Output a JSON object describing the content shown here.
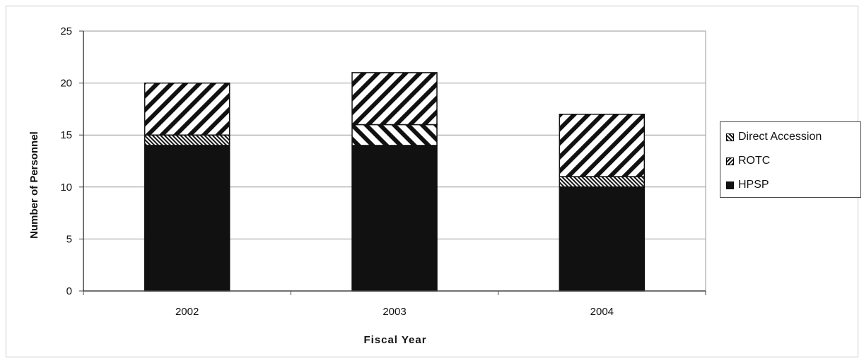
{
  "chart_data": {
    "type": "bar",
    "stacked": true,
    "categories": [
      "2002",
      "2003",
      "2004"
    ],
    "series": [
      {
        "name": "HPSP",
        "values": [
          14,
          14,
          10
        ],
        "pattern": "solid",
        "color": "#111111"
      },
      {
        "name": "ROTC",
        "values": [
          1,
          2,
          1
        ],
        "pattern": "hatch-forward",
        "color": "#111111"
      },
      {
        "name": "Direct Accession",
        "values": [
          5,
          5,
          6
        ],
        "pattern": "hatch-back",
        "color": "#111111"
      }
    ],
    "xlabel": "Fiscal Year",
    "ylabel": "Number of Personnel",
    "ylim": [
      0,
      25
    ],
    "yticks": [
      "0",
      "5",
      "10",
      "15",
      "20",
      "25"
    ],
    "grid": true,
    "legend_position": "right"
  },
  "legend": {
    "items": [
      {
        "label": "Direct Accession",
        "pattern": "hatch-back"
      },
      {
        "label": "ROTC",
        "pattern": "hatch-forward"
      },
      {
        "label": "HPSP",
        "pattern": "solid"
      }
    ]
  }
}
